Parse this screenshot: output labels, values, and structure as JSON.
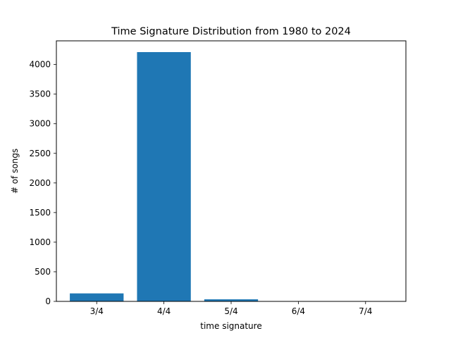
{
  "chart_data": {
    "type": "bar",
    "title": "Time Signature Distribution from 1980 to 2024",
    "xlabel": "time signature",
    "ylabel": "# of songs",
    "categories": [
      "3/4",
      "4/4",
      "5/4",
      "6/4",
      "7/4"
    ],
    "values": [
      135,
      4210,
      35,
      3,
      2
    ],
    "ylim": [
      0,
      4400
    ],
    "yticks": [
      0,
      500,
      1000,
      1500,
      2000,
      2500,
      3000,
      3500,
      4000
    ],
    "bar_color": "#1f77b4",
    "grid": false,
    "legend": "none"
  }
}
